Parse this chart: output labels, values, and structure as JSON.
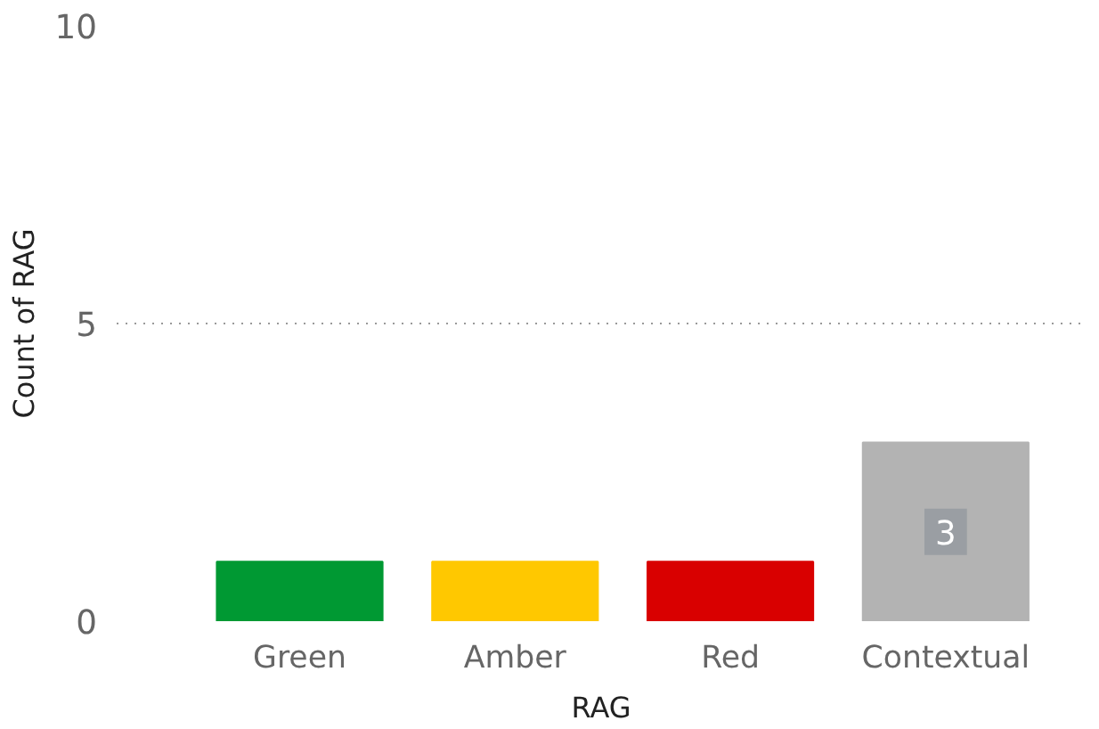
{
  "chart_data": {
    "type": "bar",
    "xlabel": "RAG",
    "ylabel": "Count of RAG",
    "categories": [
      "Green",
      "Amber",
      "Red",
      "Contextual"
    ],
    "values": [
      1,
      1,
      1,
      3
    ],
    "colors": [
      "#009933",
      "#ffc800",
      "#d90000",
      "#b3b3b3"
    ],
    "value_labels": [
      null,
      null,
      null,
      "3"
    ],
    "ylim": [
      0,
      10
    ],
    "yticks": [
      0,
      5,
      10
    ],
    "grid": "y"
  }
}
